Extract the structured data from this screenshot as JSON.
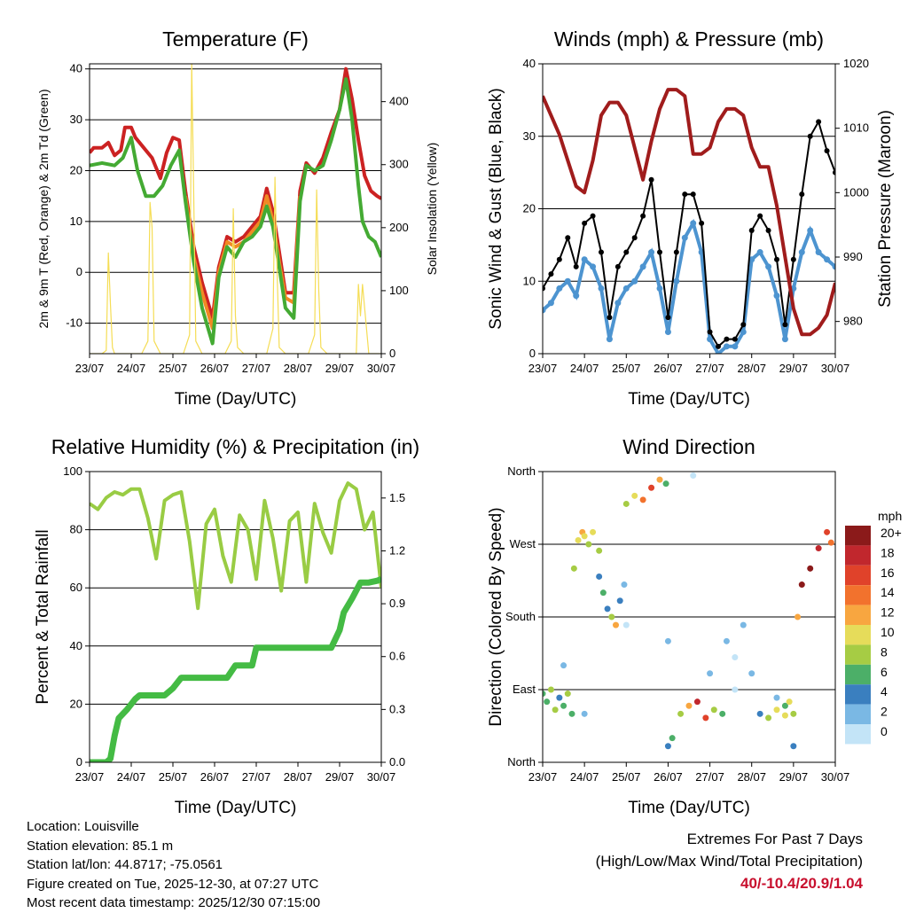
{
  "x_tick_labels": [
    "23/07",
    "24/07",
    "25/07",
    "26/07",
    "27/07",
    "28/07",
    "29/07",
    "30/07"
  ],
  "x_axis_label": "Time (Day/UTC)",
  "chart_data": [
    {
      "type": "line",
      "title": "Temperature (F)",
      "ylabel": "2m & 9m T (Red, Orange) & 2m Td (Green)",
      "y2label": "Solar Insolation (Yellow)",
      "ylim": [
        -16,
        41
      ],
      "yticks": [
        -10,
        0,
        10,
        20,
        30,
        40
      ],
      "y2lim": [
        0,
        460
      ],
      "y2ticks": [
        0,
        100,
        200,
        300,
        400
      ],
      "series": [
        {
          "name": "2m T",
          "color": "#cc2222",
          "x": [
            0,
            0.1,
            0.3,
            0.45,
            0.6,
            0.75,
            0.85,
            1.0,
            1.1,
            1.3,
            1.5,
            1.7,
            1.85,
            2.0,
            2.15,
            2.3,
            2.5,
            2.7,
            2.95,
            3.1,
            3.3,
            3.5,
            3.7,
            3.9,
            4.1,
            4.25,
            4.4,
            4.55,
            4.7,
            4.9,
            5.05,
            5.2,
            5.4,
            5.6,
            5.8,
            6.0,
            6.15,
            6.3,
            6.45,
            6.6,
            6.75,
            6.9,
            7.0
          ],
          "y": [
            23.5,
            24.5,
            24.5,
            25.5,
            23,
            24,
            28.5,
            28.5,
            26.5,
            24.5,
            22.5,
            18.5,
            23.5,
            26.5,
            26,
            16,
            5,
            -2,
            -9,
            1,
            7,
            6,
            7,
            9,
            11,
            16.5,
            12,
            4,
            -4,
            -4,
            16,
            21.5,
            19.5,
            22.5,
            27.5,
            32,
            40,
            34,
            26,
            19,
            16,
            15,
            14.5
          ]
        },
        {
          "name": "9m T",
          "color": "#f08a24",
          "x": [
            2.3,
            2.5,
            2.7,
            2.95,
            3.1,
            3.3,
            3.5,
            3.7,
            3.9,
            4.1,
            4.25,
            4.4,
            4.55,
            4.7,
            4.9,
            5.05
          ],
          "y": [
            15,
            3,
            -4,
            -11,
            0,
            6,
            5,
            6,
            8,
            10,
            15,
            10,
            2,
            -5,
            -6,
            15
          ]
        },
        {
          "name": "2m Td",
          "color": "#44aa33",
          "x": [
            0,
            0.3,
            0.6,
            0.8,
            1.0,
            1.15,
            1.35,
            1.55,
            1.75,
            1.95,
            2.15,
            2.3,
            2.5,
            2.7,
            2.95,
            3.1,
            3.3,
            3.5,
            3.7,
            3.9,
            4.1,
            4.25,
            4.4,
            4.55,
            4.7,
            4.9,
            5.05,
            5.2,
            5.4,
            5.6,
            5.8,
            6.0,
            6.15,
            6.3,
            6.45,
            6.55,
            6.7,
            6.85,
            7.0
          ],
          "y": [
            21,
            21.5,
            21,
            22.5,
            26.5,
            20,
            15,
            15,
            17,
            21,
            24,
            14,
            2,
            -7,
            -14,
            -1,
            5,
            3,
            6,
            7,
            9,
            13,
            9,
            1,
            -7,
            -9,
            14,
            21,
            20,
            21,
            26,
            32,
            38,
            30,
            17,
            10,
            7,
            6,
            3
          ]
        },
        {
          "name": "Solar Insolation",
          "color": "#f5dd55",
          "axis": "right",
          "x": [
            0,
            0.3,
            0.4,
            0.45,
            0.5,
            0.55,
            0.6,
            1.0,
            1.25,
            1.4,
            1.45,
            1.5,
            1.55,
            1.7,
            2.0,
            2.25,
            2.4,
            2.45,
            2.5,
            2.55,
            2.7,
            3.0,
            3.25,
            3.4,
            3.45,
            3.5,
            3.55,
            3.7,
            4.0,
            4.25,
            4.4,
            4.45,
            4.5,
            4.55,
            4.7,
            5.0,
            5.25,
            5.4,
            5.45,
            5.5,
            5.55,
            5.7,
            6.0,
            6.25,
            6.4,
            6.45,
            6.5,
            6.55,
            6.7,
            7.0
          ],
          "y": [
            0,
            0,
            5,
            160,
            80,
            10,
            0,
            0,
            0,
            20,
            240,
            200,
            20,
            0,
            0,
            0,
            30,
            460,
            250,
            20,
            0,
            0,
            0,
            20,
            230,
            60,
            10,
            0,
            0,
            0,
            40,
            280,
            130,
            10,
            0,
            0,
            0,
            30,
            260,
            100,
            10,
            0,
            0,
            0,
            0,
            110,
            60,
            110,
            0,
            0
          ]
        }
      ]
    },
    {
      "type": "scatter",
      "title": "Winds (mph) & Pressure (mb)",
      "ylabel": "Sonic Wind & Gust (Blue, Black)",
      "y2label": "Station Pressure (Maroon)",
      "ylim": [
        0,
        40
      ],
      "yticks": [
        0,
        10,
        20,
        30,
        40
      ],
      "y2lim": [
        975,
        1020
      ],
      "y2ticks": [
        980,
        990,
        1000,
        1010,
        1020
      ],
      "series": [
        {
          "name": "Sonic Wind",
          "color": "#4d94d0",
          "x": [
            0,
            0.2,
            0.4,
            0.6,
            0.8,
            1.0,
            1.2,
            1.4,
            1.6,
            1.8,
            2.0,
            2.2,
            2.4,
            2.6,
            2.8,
            3.0,
            3.2,
            3.4,
            3.6,
            3.8,
            4.0,
            4.2,
            4.4,
            4.6,
            4.8,
            5.0,
            5.2,
            5.4,
            5.6,
            5.8,
            6.0,
            6.2,
            6.4,
            6.6,
            6.8,
            7.0
          ],
          "y": [
            6,
            7,
            9,
            10,
            8,
            13,
            12,
            9,
            2,
            7,
            9,
            10,
            12,
            14,
            9,
            3,
            10,
            16,
            18,
            14,
            2,
            0,
            1,
            1,
            3,
            13,
            14,
            12,
            8,
            2,
            9,
            14,
            17,
            14,
            13,
            12
          ]
        },
        {
          "name": "Gust",
          "color": "#000000",
          "x": [
            0,
            0.2,
            0.4,
            0.6,
            0.8,
            1.0,
            1.2,
            1.4,
            1.6,
            1.8,
            2.0,
            2.2,
            2.4,
            2.6,
            2.8,
            3.0,
            3.2,
            3.4,
            3.6,
            3.8,
            4.0,
            4.2,
            4.4,
            4.6,
            4.8,
            5.0,
            5.2,
            5.4,
            5.6,
            5.8,
            6.0,
            6.2,
            6.4,
            6.6,
            6.8,
            7.0
          ],
          "y": [
            9,
            11,
            13,
            16,
            12,
            18,
            19,
            14,
            5,
            12,
            14,
            16,
            19,
            24,
            14,
            5,
            14,
            22,
            22,
            18,
            3,
            1,
            2,
            2,
            4,
            17,
            19,
            17,
            13,
            4,
            13,
            22,
            30,
            32,
            28,
            25
          ]
        },
        {
          "name": "Station Pressure",
          "color": "#a01c1c",
          "axis": "right",
          "x": [
            0,
            0.2,
            0.4,
            0.6,
            0.8,
            1.0,
            1.2,
            1.4,
            1.6,
            1.8,
            2.0,
            2.2,
            2.4,
            2.6,
            2.8,
            3.0,
            3.2,
            3.4,
            3.6,
            3.8,
            4.0,
            4.2,
            4.4,
            4.6,
            4.8,
            5.0,
            5.2,
            5.4,
            5.6,
            5.8,
            6.0,
            6.2,
            6.4,
            6.6,
            6.8,
            7.0
          ],
          "y": [
            1015,
            1012,
            1009,
            1005,
            1001,
            1000,
            1005,
            1012,
            1014,
            1014,
            1012,
            1007,
            1002,
            1008,
            1013,
            1016,
            1016,
            1015,
            1006,
            1006,
            1007,
            1011,
            1013,
            1013,
            1012,
            1007,
            1004,
            1004,
            998,
            990,
            982,
            978,
            978,
            979,
            981,
            986
          ]
        }
      ]
    },
    {
      "type": "line",
      "title": "Relative Humidity (%) & Precipitation (in)",
      "ylabel": "Percent & Total Rainfall",
      "ylim": [
        0,
        100
      ],
      "yticks": [
        0,
        20,
        40,
        60,
        80,
        100
      ],
      "y2lim": [
        0,
        1.65
      ],
      "y2ticks": [
        0.0,
        0.3,
        0.6,
        0.9,
        1.2,
        1.5
      ],
      "y2tick_labels": [
        "0.0",
        "0.3",
        "0.6",
        "0.9",
        "1.2",
        "1.5"
      ],
      "series": [
        {
          "name": "Relative Humidity",
          "color": "#99cc44",
          "x": [
            0,
            0.2,
            0.4,
            0.6,
            0.8,
            1.0,
            1.2,
            1.4,
            1.6,
            1.8,
            2.0,
            2.2,
            2.4,
            2.6,
            2.8,
            3.0,
            3.2,
            3.4,
            3.6,
            3.8,
            4.0,
            4.2,
            4.4,
            4.6,
            4.8,
            5.0,
            5.2,
            5.4,
            5.6,
            5.8,
            6.0,
            6.2,
            6.4,
            6.6,
            6.8,
            7.0
          ],
          "y": [
            89,
            87,
            91,
            93,
            92,
            94,
            94,
            84,
            70,
            90,
            92,
            93,
            76,
            53,
            82,
            87,
            71,
            62,
            85,
            80,
            63,
            90,
            77,
            59,
            83,
            86,
            62,
            89,
            79,
            72,
            90,
            96,
            94,
            80,
            86,
            60
          ]
        },
        {
          "name": "Total Precipitation",
          "color": "#44bb44",
          "axis": "right",
          "x": [
            0,
            0.4,
            0.5,
            0.6,
            0.7,
            0.9,
            1.0,
            1.1,
            1.2,
            1.3,
            1.5,
            1.8,
            2.0,
            2.2,
            2.5,
            2.8,
            3.0,
            3.3,
            3.5,
            3.9,
            4.0,
            4.2,
            4.5,
            4.8,
            5.0,
            5.3,
            5.6,
            5.8,
            6.0,
            6.1,
            6.3,
            6.5,
            6.7,
            6.9,
            7.0
          ],
          "y": [
            0,
            0,
            0.02,
            0.15,
            0.25,
            0.3,
            0.33,
            0.36,
            0.38,
            0.38,
            0.38,
            0.38,
            0.42,
            0.48,
            0.48,
            0.48,
            0.48,
            0.48,
            0.55,
            0.55,
            0.65,
            0.65,
            0.65,
            0.65,
            0.65,
            0.65,
            0.65,
            0.65,
            0.75,
            0.85,
            0.93,
            1.02,
            1.02,
            1.03,
            1.04
          ]
        }
      ]
    },
    {
      "type": "scatter",
      "title": "Wind Direction",
      "ylabel": "Direction (Colored By Speed)",
      "ylim": [
        0,
        360
      ],
      "yticks": [
        0,
        90,
        180,
        270,
        360
      ],
      "ytick_labels": [
        "North",
        "East",
        "South",
        "West",
        "North"
      ],
      "colorbar": {
        "title": "mph",
        "labels": [
          "20+",
          "18",
          "16",
          "14",
          "12",
          "10",
          "8",
          "6",
          "4",
          "2",
          "0"
        ],
        "colors": [
          "#8b1a1a",
          "#c1272d",
          "#e0422a",
          "#f2722d",
          "#f8a640",
          "#e6dc5a",
          "#a6cc44",
          "#4caf68",
          "#3a7fbf",
          "#7ab8e4",
          "#c3e4f7"
        ]
      },
      "points": [
        {
          "x": [
            0.0,
            0.1,
            0.2,
            0.3,
            0.4,
            0.5,
            0.6,
            0.7
          ],
          "y": [
            85,
            75,
            90,
            65,
            80,
            70,
            85,
            60
          ],
          "speed": [
            6,
            5,
            8,
            7,
            4,
            6,
            7,
            5
          ]
        },
        {
          "x": [
            0.75,
            0.85,
            0.95,
            1.0,
            1.1,
            1.2,
            1.35
          ],
          "y": [
            240,
            275,
            285,
            280,
            270,
            285,
            262
          ],
          "speed": [
            8,
            10,
            11,
            9,
            8,
            10,
            7
          ]
        },
        {
          "x": [
            1.35,
            1.45,
            1.55,
            1.65,
            1.75,
            1.85,
            1.95
          ],
          "y": [
            230,
            210,
            190,
            180,
            170,
            200,
            220
          ],
          "speed": [
            4,
            6,
            3,
            8,
            12,
            4,
            2
          ]
        },
        {
          "x": [
            2.0,
            2.2,
            2.4,
            2.6,
            2.8,
            2.95
          ],
          "y": [
            320,
            330,
            325,
            340,
            350,
            345
          ],
          "speed": [
            8,
            10,
            14,
            16,
            12,
            5
          ]
        },
        {
          "x": [
            3.0,
            3.1,
            3.3,
            3.5,
            3.7,
            3.9,
            4.1,
            4.3
          ],
          "y": [
            20,
            30,
            60,
            70,
            75,
            55,
            65,
            60
          ],
          "speed": [
            3,
            5,
            8,
            12,
            17,
            15,
            8,
            6
          ]
        },
        {
          "x": [
            4.4,
            4.6,
            4.8,
            5.0,
            5.2,
            5.4,
            5.6,
            5.8
          ],
          "y": [
            150,
            130,
            170,
            110,
            60,
            55,
            65,
            58
          ],
          "speed": [
            1,
            0,
            2,
            1,
            3,
            8,
            10,
            9
          ]
        },
        {
          "x": [
            5.8,
            5.9,
            6.0,
            6.1,
            6.2,
            6.4,
            6.6,
            6.8,
            6.9
          ],
          "y": [
            70,
            75,
            60,
            180,
            220,
            240,
            265,
            285,
            272
          ],
          "speed": [
            6,
            9,
            8,
            12,
            20,
            20,
            18,
            16,
            14
          ]
        },
        {
          "x": [
            0.5,
            1.0,
            2.0,
            3.0,
            3.6,
            4.0,
            4.6,
            5.6,
            6.0
          ],
          "y": [
            120,
            60,
            170,
            150,
            355,
            110,
            90,
            80,
            20
          ],
          "speed": [
            2,
            1,
            0,
            1,
            0,
            2,
            0,
            1,
            3
          ]
        }
      ]
    }
  ],
  "info": {
    "location": "Location: Louisville",
    "elevation": "Station elevation: 85.1 m",
    "latlon": "Station lat/lon: 44.8717; -75.0561",
    "created": "Figure created on Tue, 2025-12-30, at 07:27 UTC",
    "recent": "Most recent data timestamp: 2025/12/30 07:15:00"
  },
  "extremes": {
    "line1": "Extremes For Past 7 Days",
    "line2": "(High/Low/Max Wind/Total Precipitation)",
    "values": "40/-10.4/20.9/1.04"
  }
}
